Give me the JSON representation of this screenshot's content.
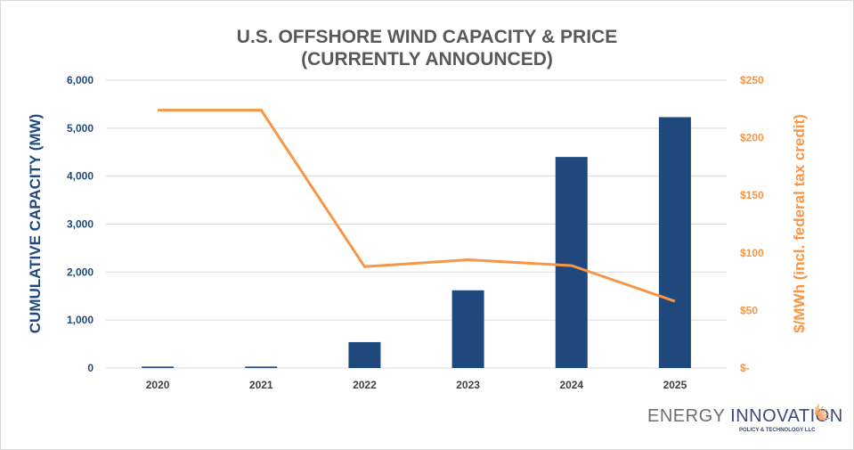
{
  "chart_data": {
    "type": "bar+line",
    "title": "U.S. OFFSHORE WIND CAPACITY & PRICE",
    "subtitle": "(CURRENTLY ANNOUNCED)",
    "categories": [
      "2020",
      "2021",
      "2022",
      "2023",
      "2024",
      "2025"
    ],
    "series": [
      {
        "name": "",
        "type": "bar",
        "axis": "left",
        "color": "#1f497d",
        "values": [
          30,
          30,
          540,
          1620,
          4400,
          5230
        ]
      },
      {
        "name": "",
        "type": "line",
        "axis": "right",
        "color": "#f79646",
        "values": [
          224,
          224,
          88,
          94,
          89,
          58
        ]
      }
    ],
    "ylabel": "CUMULATIVE CAPACITY (MW)",
    "ylim": [
      0,
      6000
    ],
    "yticks": [
      "0",
      "1,000",
      "2,000",
      "3,000",
      "4,000",
      "5,000",
      "6,000"
    ],
    "y2label": "$/MWh (incl. federal tax credit)",
    "y2lim": [
      0,
      250
    ],
    "y2ticks": [
      "$-",
      "$50",
      "$100",
      "$150",
      "$200",
      "$250"
    ],
    "grid": true
  },
  "logo": {
    "main1": "ENERGY",
    "main2": "INNOVATION",
    "sub": "POLICY & TECHNOLOGY LLC"
  }
}
